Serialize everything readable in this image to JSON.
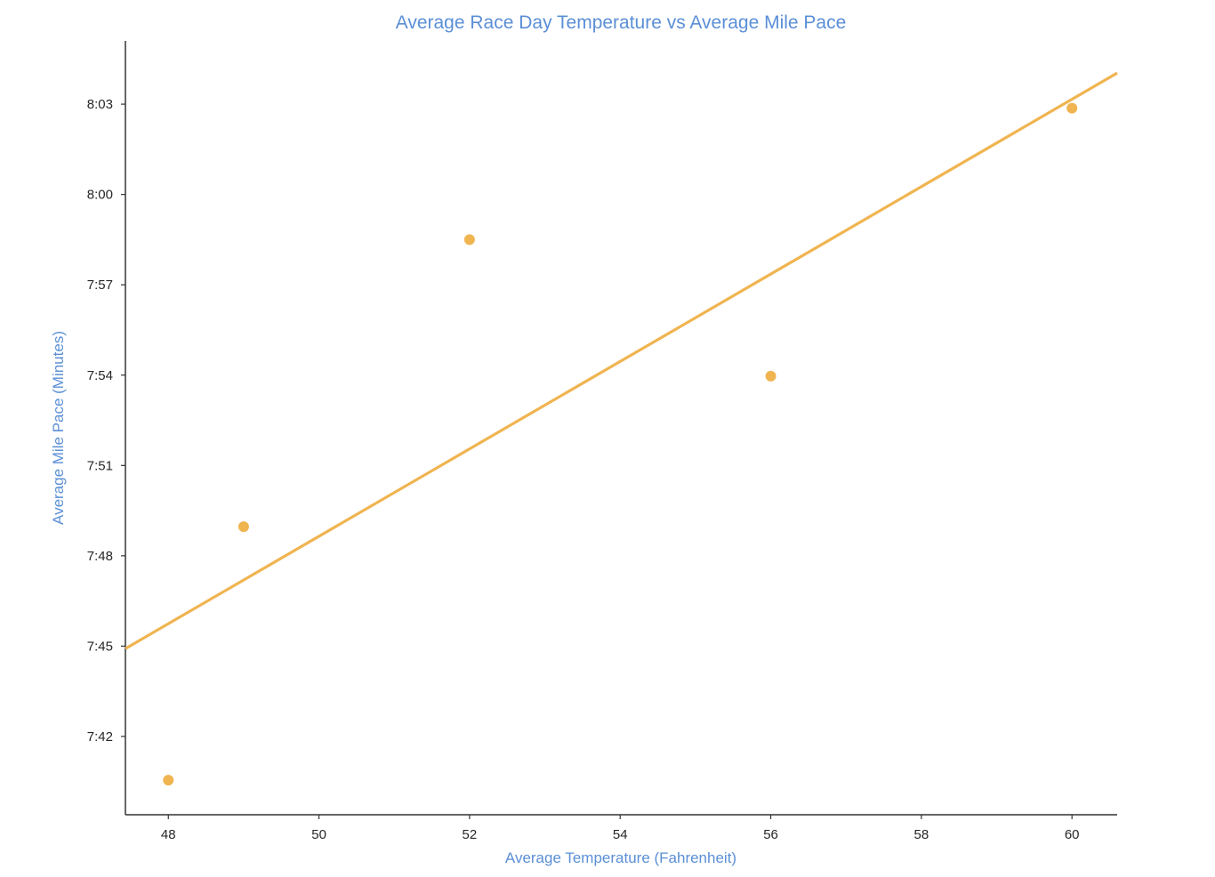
{
  "chart_data": {
    "type": "scatter",
    "title": "Average Race Day Temperature vs Average Mile Pace",
    "xlabel": "Average Temperature (Fahrenheit)",
    "ylabel": "Average Mile Pace (Minutes)",
    "xlim": [
      47.43,
      60.6
    ],
    "ylim": [
      "7:39:24",
      "8:05:06"
    ],
    "x_ticks": [
      "48",
      "50",
      "52",
      "54",
      "56",
      "58",
      "60"
    ],
    "y_ticks": [
      "7:42",
      "7:45",
      "7:48",
      "7:51",
      "7:54",
      "7:57",
      "8:00",
      "8:03"
    ],
    "points": [
      {
        "x": 48,
        "y": "7:40:33"
      },
      {
        "x": 49,
        "y": "7:48:58"
      },
      {
        "x": 52,
        "y": "7:58:30"
      },
      {
        "x": 56,
        "y": "7:53:58"
      },
      {
        "x": 60,
        "y": "8:02:52"
      }
    ],
    "trendline": {
      "x": [
        47.43,
        60.6
      ],
      "y": [
        "7:44:55",
        "8:04:02"
      ]
    },
    "grid": false,
    "legend": "none",
    "colors": {
      "marker": "#F0B450",
      "line": "#F0B450",
      "title": "#5B8FD6",
      "axis_label": "#5B8FD6",
      "tick_text": "#262626",
      "spine": "#333333"
    }
  }
}
